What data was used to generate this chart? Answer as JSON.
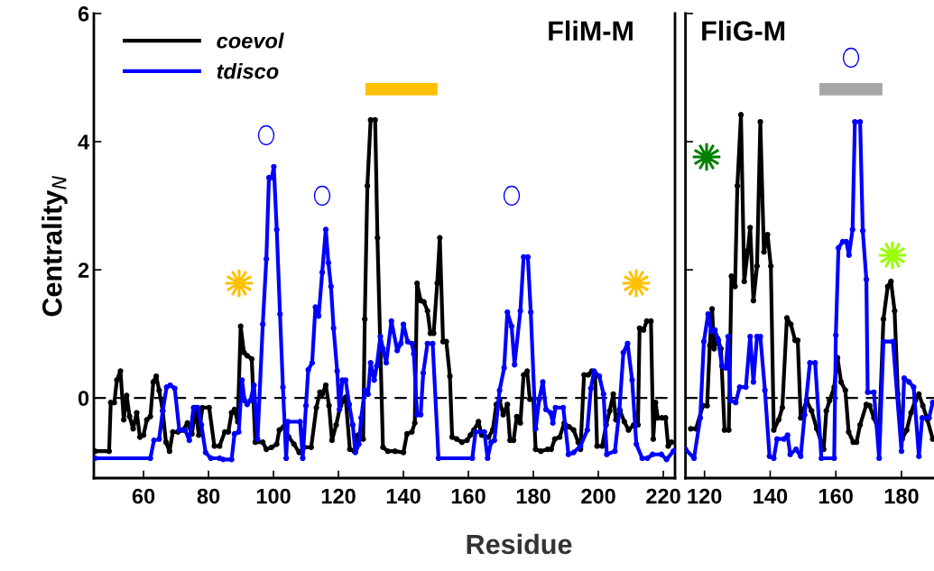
{
  "chart_data": [
    {
      "type": "line",
      "title": "FliM-M",
      "xlabel": "Residue",
      "ylabel": "Centrality$_{N}$",
      "xlim": [
        44.7,
        223.6
      ],
      "xticks": [
        60,
        80,
        100,
        120,
        140,
        160,
        180,
        200,
        220
      ],
      "ylim": [
        -1.25,
        6
      ],
      "yticks": [
        0,
        2,
        4,
        6
      ],
      "legend": "top left",
      "marker": "circle",
      "grid": false,
      "ref_lines": [
        {
          "axis": "y",
          "value": 0,
          "color": "#000000",
          "line_style": "dashed"
        }
      ],
      "series": [
        {
          "marker": "none",
          "color": "#ffc000",
          "x": [
            128.3,
            150.5
          ],
          "values": [
            4.82,
            4.82
          ]
        },
        {
          "name": "coevol",
          "color": "#000000",
          "x": [
            45.1,
            49.4,
            49.9,
            51,
            51.8,
            52.9,
            53.9,
            54.8,
            55.7,
            56.8,
            57.9,
            58.9,
            60,
            61,
            62.1,
            63,
            63.9,
            64.8,
            65.9,
            66.9,
            68,
            69,
            70.6,
            72.2,
            73.5,
            74.9,
            76,
            77,
            78.1,
            80.2,
            81.8,
            83.4,
            85,
            86.1,
            87.1,
            88,
            89,
            89.9,
            90.9,
            91.9,
            93.3,
            94.4,
            96.7,
            97.8,
            99.4,
            101,
            101.8,
            103.1,
            104.7,
            106.3,
            107.9,
            109.5,
            111.6,
            113.2,
            114.3,
            115,
            116.1,
            117.1,
            118,
            119.3,
            120.6,
            122.2,
            123.5,
            124.9,
            126,
            127.6,
            128.1,
            128.9,
            129.9,
            131.3,
            132,
            133.7,
            135.2,
            137.4,
            140,
            141.1,
            142.6,
            143.5,
            144.2,
            145.3,
            146.3,
            147.4,
            148.3,
            149.3,
            150.4,
            151.2,
            152.2,
            153.2,
            154.3,
            155,
            156.4,
            158,
            159.6,
            160.6,
            161.7,
            163.1,
            164.1,
            166.2,
            167.5,
            168.6,
            169.6,
            170.7,
            172,
            172.8,
            173.9,
            174.9,
            176,
            177,
            178.1,
            178.9,
            180,
            180.7,
            182.3,
            184.4,
            185.5,
            186.6,
            188.1,
            189.5,
            191,
            192.4,
            193.8,
            194.5,
            195.6,
            196.9,
            198,
            199,
            199.6,
            201.2,
            202.4,
            203.5,
            204.6,
            205.4,
            206.7,
            208,
            209.3,
            210.9,
            212.2,
            212.7,
            213.9,
            214.9,
            216.2,
            216.9,
            217.6,
            218.3,
            219.6,
            220.7,
            221.5,
            222.5
          ],
          "values": [
            -0.83,
            -0.83,
            -0.07,
            -0.07,
            0.28,
            0.42,
            -0.34,
            0.04,
            -0.29,
            -0.48,
            -0.23,
            -0.61,
            -0.58,
            -0.34,
            -0.29,
            0.25,
            0.34,
            0.12,
            -0.2,
            -0.69,
            -0.83,
            -0.53,
            -0.53,
            -0.5,
            -0.39,
            -0.56,
            -0.15,
            -0.58,
            -0.15,
            -0.15,
            -0.75,
            -0.75,
            -0.53,
            -0.53,
            -0.23,
            -0.18,
            -0.37,
            1.12,
            0.71,
            0.66,
            0.61,
            -0.69,
            -0.69,
            -0.8,
            -0.77,
            -0.72,
            -0.5,
            -0.45,
            -0.61,
            -0.72,
            -0.85,
            -0.77,
            -0.77,
            -0.15,
            0.09,
            0.06,
            0.2,
            -0.12,
            -0.66,
            -0.42,
            -0.12,
            0.01,
            -0.8,
            -0.83,
            -0.58,
            -0.64,
            1.23,
            3.31,
            4.34,
            4.34,
            2.5,
            -0.77,
            -0.83,
            -0.83,
            -0.85,
            -0.56,
            -0.53,
            -0.39,
            1.79,
            1.52,
            1.5,
            1.36,
            1.01,
            1.01,
            1.79,
            2.5,
            0.88,
            0.88,
            0.34,
            -0.61,
            -0.64,
            -0.69,
            -0.66,
            -0.58,
            -0.5,
            -0.37,
            -0.58,
            -0.61,
            -0.5,
            -0.1,
            -0.04,
            -0.26,
            -0.1,
            -0.66,
            -0.66,
            -0.29,
            -0.39,
            0.36,
            0.42,
            -0.02,
            -0.02,
            -0.8,
            -0.83,
            -0.8,
            -0.8,
            -0.64,
            -0.61,
            -0.39,
            -0.45,
            -0.5,
            -0.69,
            -0.8,
            0.36,
            0.36,
            0.42,
            0.36,
            -0.75,
            -0.75,
            -0.42,
            -0.2,
            0.06,
            -0.34,
            -0.2,
            -0.37,
            -0.5,
            -0.42,
            -0.42,
            1.09,
            1.06,
            1.2,
            1.2,
            -0.64,
            -0.07,
            -0.31,
            -0.31,
            -0.31,
            -0.75,
            -0.69
          ]
        },
        {
          "name": "tdisco",
          "color": "#0000ff",
          "x": [
            45.1,
            62.1,
            63.2,
            64.8,
            65.9,
            67.1,
            68.2,
            69.6,
            71,
            72.8,
            74.1,
            75.4,
            76.7,
            77.8,
            79.1,
            80.7,
            83.4,
            84.5,
            87.1,
            88,
            89.3,
            90.3,
            91.1,
            91.9,
            92.9,
            94,
            95.1,
            96.7,
            97.8,
            98.6,
            99.5,
            100.1,
            101,
            102,
            102.9,
            103.9,
            104.4,
            108.2,
            109,
            110,
            110.7,
            111.9,
            112.9,
            113.9,
            115,
            116.1,
            116.9,
            117.7,
            118.5,
            119.6,
            120.3,
            121.2,
            122.2,
            123.3,
            124.4,
            125.2,
            126.3,
            127,
            128.1,
            129.1,
            129.9,
            131,
            131.8,
            132.9,
            133.7,
            134.7,
            136.3,
            138.1,
            139.2,
            140,
            141.3,
            142.6,
            143.2,
            144.2,
            145.3,
            146.1,
            147.4,
            149,
            150.8,
            161.2,
            162.2,
            164.9,
            165.9,
            167,
            168,
            169.6,
            171,
            172,
            173.3,
            174.2,
            176,
            177,
            178.3,
            179.2,
            180.7,
            181.8,
            182.9,
            183.9,
            185.3,
            186,
            186.8,
            189.2,
            190.8,
            192.4,
            194.5,
            196.6,
            197.7,
            198.7,
            200.3,
            201.6,
            202.6,
            205.1,
            206.5,
            207.7,
            209,
            210.4,
            211.7,
            213.5,
            215.1,
            216.7,
            219.4,
            221,
            223.1
          ],
          "values": [
            -0.94,
            -0.94,
            -0.66,
            -0.64,
            -0.2,
            0.17,
            0.2,
            0.15,
            -0.5,
            -0.5,
            -0.66,
            -0.15,
            -0.15,
            -0.42,
            -0.85,
            -0.94,
            -0.94,
            -0.96,
            -0.96,
            -0.56,
            -0.53,
            0.28,
            -0.04,
            -0.1,
            -0.04,
            0.2,
            -0.64,
            1.15,
            2.17,
            3.44,
            3.44,
            3.61,
            2.63,
            1.31,
            0.17,
            -0.94,
            -0.37,
            -0.37,
            -0.94,
            -0.12,
            0.44,
            0.55,
            1.42,
            1.28,
            1.96,
            2.63,
            2.11,
            1.74,
            1.09,
            0.42,
            -0.18,
            0.28,
            0.28,
            -0.1,
            -0.42,
            -0.85,
            -0.72,
            -0.31,
            0.12,
            0.06,
            0.55,
            0.28,
            0.5,
            0.96,
            0.77,
            0.55,
            1.2,
            0.74,
            0.85,
            1.15,
            0.88,
            0.85,
            0.69,
            -0.26,
            -0.26,
            0.39,
            0.85,
            0.85,
            -0.94,
            -0.94,
            -0.53,
            -0.53,
            -0.94,
            -0.69,
            -0.66,
            0.12,
            0.47,
            1.34,
            1.12,
            0.52,
            1.36,
            2.2,
            2.2,
            1.34,
            -0.48,
            -0.02,
            0.25,
            -0.18,
            -0.23,
            -0.39,
            -0.15,
            -0.15,
            -0.88,
            -0.85,
            -0.75,
            -0.5,
            0.15,
            0.42,
            0.34,
            0.06,
            -0.88,
            -0.83,
            -0.18,
            0.71,
            0.85,
            0.28,
            -0.72,
            -0.94,
            -0.94,
            -0.88,
            -0.88,
            -0.96,
            -0.83
          ]
        }
      ]
    },
    {
      "type": "line",
      "title": "FliG-M",
      "xlim": [
        114.2,
        189.9
      ],
      "xticks": [
        120,
        140,
        160,
        180
      ],
      "ylim": [
        -1.25,
        6
      ],
      "yticks": [
        {
          "value": 0,
          "label": null
        },
        {
          "value": 2,
          "label": null
        },
        {
          "value": 4,
          "label": null
        },
        {
          "value": 6,
          "label": null
        }
      ],
      "tick_labels": "x",
      "marker": "circle",
      "grid": false,
      "ref_lines": [
        {
          "axis": "y",
          "value": 0,
          "color": "#000000",
          "line_style": "dashed"
        }
      ],
      "series": [
        {
          "marker": "none",
          "color": "#a6a6a6",
          "x": [
            155.0,
            174.2
          ],
          "values": [
            4.82,
            4.82
          ]
        },
        {
          "color": "#000000",
          "x": [
            115.8,
            117.4,
            119.5,
            120.8,
            121.6,
            122.3,
            122.9,
            124,
            125,
            126.1,
            127.4,
            128.2,
            129.3,
            130,
            131.1,
            132.1,
            133.2,
            133.9,
            134.9,
            136,
            137,
            138.1,
            139.2,
            140.2,
            141.1,
            142.6,
            143.7,
            145.1,
            146.3,
            147.6,
            148.4,
            149.3,
            151.1,
            152.6,
            154.2,
            156.3,
            157.1,
            158.1,
            159.5,
            160.5,
            161.6,
            162.9,
            163.9,
            165.3,
            166.3,
            167.4,
            169.3,
            170.3,
            171.6,
            173.2,
            174.5,
            175.8,
            176.8,
            177.9,
            178.9,
            180.2,
            181.6,
            182.9,
            184.2,
            185.3,
            186.5,
            187.9,
            189.5
          ],
          "values": [
            -0.48,
            -0.48,
            -0.12,
            -0.12,
            0.82,
            1.39,
            0.77,
            0.93,
            0.77,
            -0.5,
            -0.5,
            1.9,
            1.74,
            3.31,
            4.42,
            1.82,
            2.3,
            2.66,
            1.52,
            2.06,
            4.31,
            2.28,
            2.55,
            2.06,
            -0.5,
            -0.34,
            -0.15,
            1.25,
            1.15,
            0.9,
            0.9,
            -0.31,
            -0.04,
            -0.2,
            -0.48,
            -0.8,
            -0.2,
            -0.04,
            0.17,
            0.63,
            0.25,
            0.12,
            -0.53,
            -0.69,
            -0.69,
            -0.42,
            -0.1,
            -0.12,
            -0.31,
            -0.53,
            1.23,
            1.74,
            1.82,
            1.36,
            0.06,
            -0.64,
            -0.5,
            -0.23,
            -0.04,
            0.06,
            -0.12,
            -0.34,
            -0.64
          ]
        },
        {
          "color": "#0000ff",
          "x": [
            114.2,
            116.8,
            118.7,
            119.8,
            121.1,
            122.1,
            123.2,
            124.2,
            125.3,
            126.5,
            127.2,
            127.9,
            129.5,
            130.7,
            132.6,
            133.9,
            134.9,
            136,
            137,
            138.4,
            139.8,
            141.1,
            142.1,
            144.2,
            145.3,
            146.1,
            147.9,
            149.3,
            150.5,
            152.1,
            153.7,
            155.6,
            159.5,
            160,
            160.8,
            162.1,
            163.2,
            164,
            165.1,
            165.8,
            167.4,
            168.2,
            169.3,
            169.7,
            171.6,
            173.2,
            174.5,
            177.4,
            180,
            180.8,
            182.3,
            183.7,
            185.3,
            186.3,
            188.4,
            189.5
          ],
          "values": [
            -0.8,
            -0.94,
            -0.31,
            0.88,
            1.31,
            1.04,
            1.06,
            0.9,
            0.5,
            0.47,
            0.96,
            -0.04,
            -0.07,
            0.17,
            0.17,
            0.96,
            0.25,
            0.96,
            0.96,
            0.12,
            -0.91,
            -0.94,
            -0.64,
            -0.64,
            -0.58,
            -0.88,
            -0.8,
            -0.91,
            -0.26,
            0.55,
            0.55,
            -0.94,
            -0.94,
            0.98,
            2.34,
            2.44,
            2.44,
            2.23,
            2.63,
            4.31,
            4.31,
            2.61,
            1.85,
            0.09,
            0.09,
            -0.94,
            0.88,
            0.88,
            -0.83,
            0.31,
            0.25,
            0.17,
            -0.91,
            -0.31,
            -0.31,
            -0.07
          ]
        }
      ]
    }
  ]
}
